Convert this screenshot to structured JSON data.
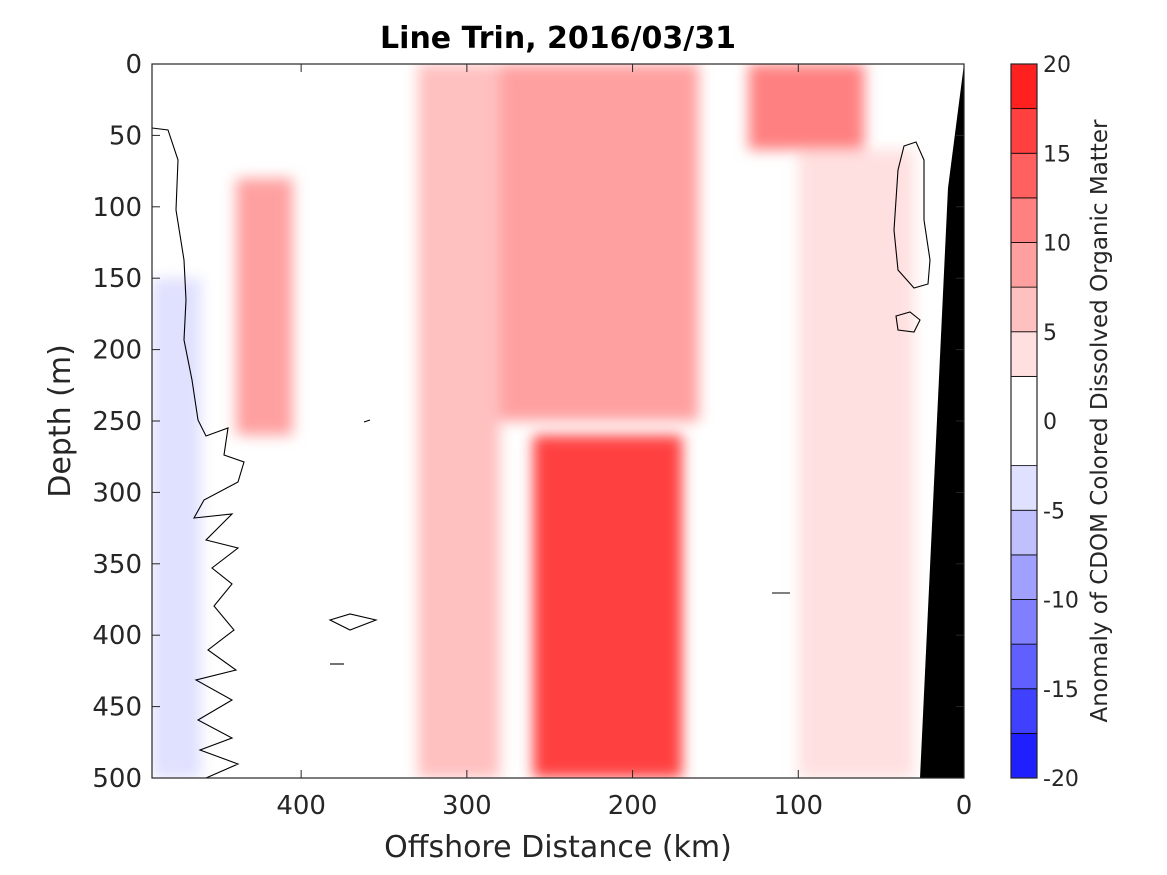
{
  "chart_data": {
    "type": "heatmap",
    "title": "Line Trin, 2016/03/31",
    "xlabel": "Offshore Distance (km)",
    "ylabel": "Depth (m)",
    "xlim": [
      490,
      0
    ],
    "ylim": [
      0,
      500
    ],
    "x_reversed": true,
    "y_reversed": true,
    "x_ticks": [
      400,
      300,
      200,
      100,
      0
    ],
    "x_tick_labels": [
      "400",
      "300",
      "200",
      "100",
      "0"
    ],
    "y_ticks": [
      0,
      50,
      100,
      150,
      200,
      250,
      300,
      350,
      400,
      450,
      500
    ],
    "y_tick_labels": [
      "0",
      "50",
      "100",
      "150",
      "200",
      "250",
      "300",
      "350",
      "400",
      "450",
      "500"
    ],
    "colorbar": {
      "label": "Anomaly of CDOM Colored Dissolved Organic Matter",
      "limits": [
        -20,
        20
      ],
      "ticks": [
        20,
        15,
        10,
        5,
        0,
        -5,
        -10,
        -15,
        -20
      ],
      "tick_labels": [
        "20",
        "15",
        "10",
        "5",
        "0",
        "-5",
        "-10",
        "-15",
        "-20"
      ],
      "levels": [
        -20,
        -17.5,
        -15,
        -12.5,
        -10,
        -7.5,
        -5,
        -2.5,
        2.5,
        5,
        7.5,
        10,
        12.5,
        15,
        17.5,
        20
      ],
      "colors": [
        "#0000ff",
        "#2020ff",
        "#4040ff",
        "#6060ff",
        "#8080ff",
        "#a0a0ff",
        "#c0c0ff",
        "#e0e0ff",
        "#ffffff",
        "#ffe0e0",
        "#ffc0c0",
        "#ffa0a0",
        "#ff8080",
        "#ff6060",
        "#ff4040",
        "#ff2020",
        "#ff0000"
      ]
    },
    "bathymetry_color": "#000000",
    "bathymetry_depth_profile": [
      [
        0,
        0
      ],
      [
        12,
        90
      ],
      [
        16,
        210
      ],
      [
        20,
        330
      ],
      [
        24,
        430
      ],
      [
        28,
        500
      ]
    ],
    "zero_contour_color": "#000000",
    "anomaly_bands": [
      {
        "x_range": [
          490,
          460
        ],
        "depth_range": [
          150,
          500
        ],
        "value": -4
      },
      {
        "x_range": [
          460,
          440
        ],
        "depth_range": [
          0,
          500
        ],
        "value": 0
      },
      {
        "x_range": [
          440,
          405
        ],
        "depth_range": [
          80,
          260
        ],
        "value": 8
      },
      {
        "x_range": [
          360,
          330
        ],
        "depth_range": [
          0,
          500
        ],
        "value": 0
      },
      {
        "x_range": [
          330,
          280
        ],
        "depth_range": [
          0,
          500
        ],
        "value": 5
      },
      {
        "x_range": [
          280,
          160
        ],
        "depth_range": [
          0,
          250
        ],
        "value": 8
      },
      {
        "x_range": [
          260,
          170
        ],
        "depth_range": [
          260,
          500
        ],
        "value": 16
      },
      {
        "x_range": [
          130,
          60
        ],
        "depth_range": [
          0,
          60
        ],
        "value": 11
      },
      {
        "x_range": [
          100,
          30
        ],
        "depth_range": [
          60,
          500
        ],
        "value": 4
      }
    ]
  }
}
